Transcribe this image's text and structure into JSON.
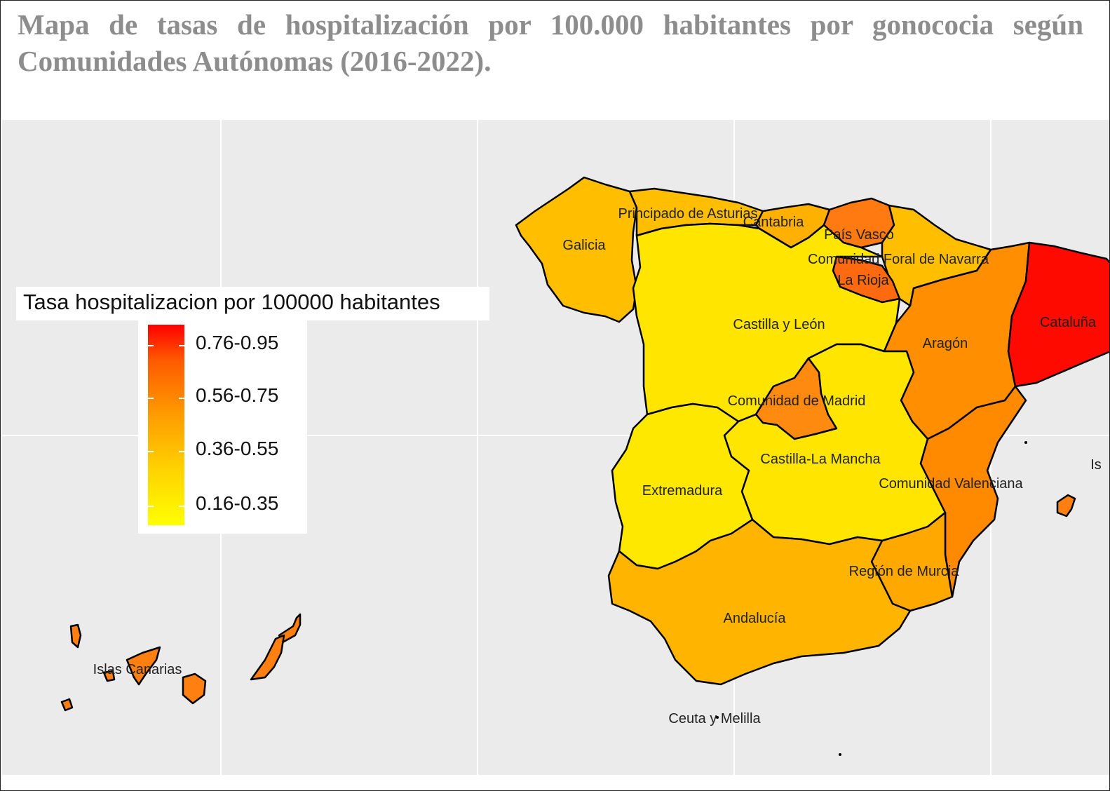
{
  "title": "Mapa de tasas de hospitalización por 100.000 habitantes por gonococia según Comunidades Autónomas (2016-2022).",
  "legend": {
    "title": "Tasa hospitalizacion por 100000 habitantes",
    "bins": [
      {
        "label": "0.76-0.95",
        "color": "#ff2a00"
      },
      {
        "label": "0.56-0.75",
        "color": "#ff8c00"
      },
      {
        "label": "0.36-0.55",
        "color": "#ffc400"
      },
      {
        "label": "0.16-0.35",
        "color": "#ffee00"
      }
    ]
  },
  "colors": {
    "panel_background": "#ebebeb",
    "grid": "#ffffff",
    "border": "#000000"
  },
  "regions": [
    {
      "name": "Galicia",
      "bin": "0.36-0.55",
      "color": "#ffbf00"
    },
    {
      "name": "Principado de Asturias",
      "bin": "0.36-0.55",
      "color": "#ffbf00"
    },
    {
      "name": "Cantabria",
      "bin": "0.36-0.55",
      "color": "#ffb000"
    },
    {
      "name": "País Vasco",
      "bin": "0.56-0.75",
      "color": "#ff7a10"
    },
    {
      "name": "Comunidad Foral de Navarra",
      "bin": "0.36-0.55",
      "color": "#ffbf00"
    },
    {
      "name": "La Rioja",
      "bin": "0.56-0.75",
      "color": "#ff6a10"
    },
    {
      "name": "Castilla y León",
      "bin": "0.16-0.35",
      "color": "#ffe500"
    },
    {
      "name": "Aragón",
      "bin": "0.56-0.75",
      "color": "#ff8e00"
    },
    {
      "name": "Cataluña",
      "bin": "0.76-0.95",
      "color": "#ff0a00"
    },
    {
      "name": "Comunidad de Madrid",
      "bin": "0.56-0.75",
      "color": "#ff8a10"
    },
    {
      "name": "Castilla-La Mancha",
      "bin": "0.16-0.35",
      "color": "#ffe500"
    },
    {
      "name": "Extremadura",
      "bin": "0.16-0.35",
      "color": "#ffe800"
    },
    {
      "name": "Comunidad Valenciana",
      "bin": "0.56-0.75",
      "color": "#ff8a00"
    },
    {
      "name": "Región de Murcia",
      "bin": "0.36-0.55",
      "color": "#ffa800"
    },
    {
      "name": "Andalucía",
      "bin": "0.36-0.55",
      "color": "#ffb500"
    },
    {
      "name": "Islas Canarias",
      "bin": "0.56-0.75",
      "color": "#ff8010"
    },
    {
      "name": "Islas Baleares",
      "label": "Is",
      "bin": "0.56-0.75",
      "color": "#ff8010"
    },
    {
      "name": "Ceuta y Melilla",
      "bin": "0.36-0.55",
      "color": "#ffb500"
    }
  ]
}
